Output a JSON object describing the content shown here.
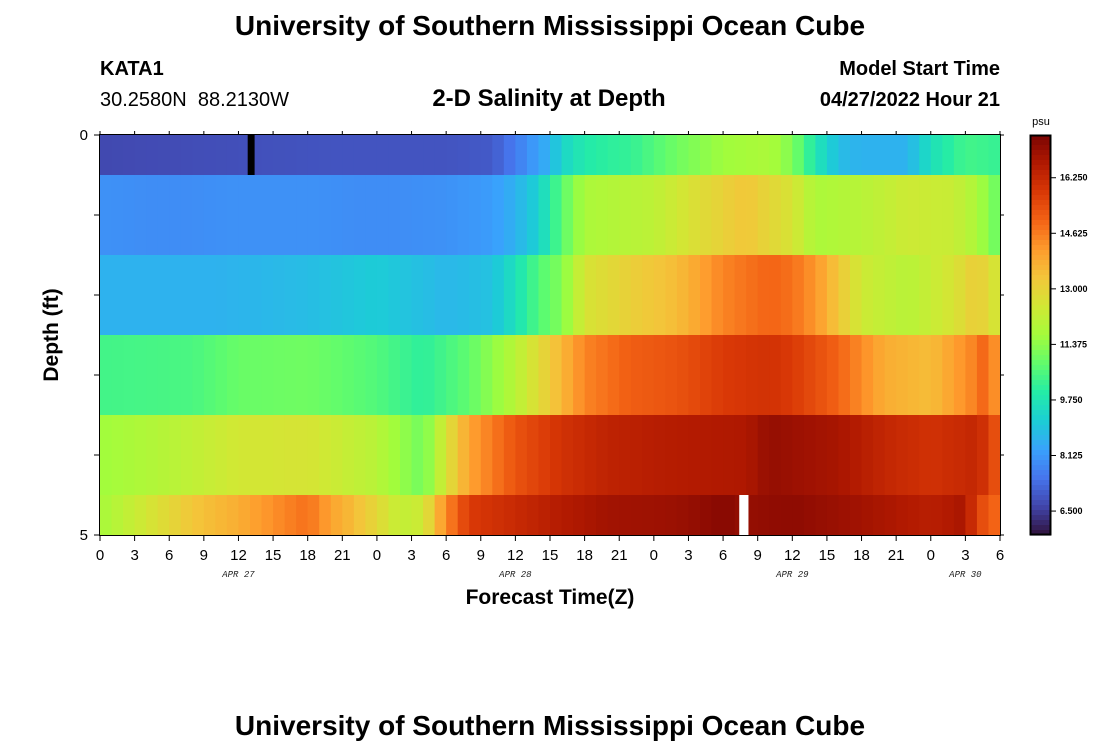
{
  "title": "University of Southern Mississippi Ocean Cube",
  "footer_title": "University of Southern Mississippi Ocean Cube",
  "station": {
    "name": "KATA1",
    "coords": "30.2580N  88.2130W"
  },
  "subtitle": "2-D Salinity at Depth",
  "model_start": {
    "label": "Model Start Time",
    "value": "04/27/2022 Hour 21"
  },
  "chart_data": {
    "type": "heatmap",
    "title": "2-D Salinity at Depth",
    "xlabel": "Forecast Time(Z)",
    "ylabel": "Depth (ft)",
    "ylim": [
      0,
      5
    ],
    "y_tick_labels": [
      "0",
      "5"
    ],
    "x_tick_labels": [
      "0",
      "3",
      "6",
      "9",
      "12",
      "15",
      "18",
      "21",
      "0",
      "3",
      "6",
      "9",
      "12",
      "15",
      "18",
      "21",
      "0",
      "3",
      "6",
      "9",
      "12",
      "15",
      "18",
      "21",
      "0",
      "3",
      "6"
    ],
    "date_labels": [
      {
        "text": "APR 27",
        "hour": 12
      },
      {
        "text": "APR 28",
        "hour": 36
      },
      {
        "text": "APR 29",
        "hour": 60
      },
      {
        "text": "APR 30",
        "hour": 75
      }
    ],
    "hours_total": 78,
    "colorbar": {
      "unit": "psu",
      "min": 5.8,
      "max": 17.5,
      "tick_labels": [
        "16.250",
        "14.625",
        "13.000",
        "11.375",
        "9.750",
        "8.125",
        "6.500"
      ],
      "tick_values": [
        16.25,
        14.625,
        13.0,
        11.375,
        9.75,
        8.125,
        6.5
      ],
      "colors": [
        "#30123b",
        "#4145ab",
        "#4675ed",
        "#39a2fc",
        "#1bcfd4",
        "#24eca6",
        "#61fc6c",
        "#a4fc3b",
        "#d1e834",
        "#f3c63a",
        "#fe9b2d",
        "#f36315",
        "#d93806",
        "#b11901",
        "#7a0403"
      ]
    },
    "depth_layers": [
      {
        "depth_range": [
          0,
          0.5
        ],
        "keys": [
          [
            0,
            6.7
          ],
          [
            10,
            6.8
          ],
          [
            20,
            6.9
          ],
          [
            30,
            6.9
          ],
          [
            34,
            7.0
          ],
          [
            36,
            7.6
          ],
          [
            38,
            8.3
          ],
          [
            39,
            8.6
          ],
          [
            40,
            9.3
          ],
          [
            42,
            9.9
          ],
          [
            44,
            10.1
          ],
          [
            46,
            10.2
          ],
          [
            50,
            11.0
          ],
          [
            54,
            11.6
          ],
          [
            58,
            11.8
          ],
          [
            60,
            11.2
          ],
          [
            62,
            9.8
          ],
          [
            64,
            8.8
          ],
          [
            66,
            8.6
          ],
          [
            70,
            8.6
          ],
          [
            72,
            9.6
          ],
          [
            75,
            10.4
          ],
          [
            77,
            10.3
          ],
          [
            78,
            10.2
          ]
        ],
        "no_data_hours": [
          [
            12.8,
            13.4
          ]
        ]
      },
      {
        "depth_range": [
          0.5,
          1.5
        ],
        "keys": [
          [
            0,
            8.0
          ],
          [
            6,
            7.9
          ],
          [
            12,
            8.0
          ],
          [
            18,
            8.0
          ],
          [
            24,
            7.9
          ],
          [
            30,
            8.0
          ],
          [
            34,
            8.2
          ],
          [
            36,
            8.6
          ],
          [
            38,
            9.2
          ],
          [
            40,
            10.7
          ],
          [
            42,
            11.8
          ],
          [
            48,
            12.1
          ],
          [
            52,
            12.8
          ],
          [
            56,
            13.3
          ],
          [
            60,
            12.6
          ],
          [
            62,
            11.8
          ],
          [
            66,
            12.0
          ],
          [
            70,
            12.4
          ],
          [
            74,
            12.3
          ],
          [
            76,
            11.8
          ],
          [
            78,
            10.8
          ]
        ]
      },
      {
        "depth_range": [
          1.5,
          2.5
        ],
        "keys": [
          [
            0,
            8.6
          ],
          [
            10,
            8.6
          ],
          [
            18,
            8.8
          ],
          [
            24,
            9.1
          ],
          [
            30,
            8.7
          ],
          [
            34,
            8.9
          ],
          [
            36,
            9.6
          ],
          [
            38,
            10.6
          ],
          [
            40,
            11.2
          ],
          [
            42,
            12.6
          ],
          [
            46,
            13.1
          ],
          [
            50,
            13.5
          ],
          [
            54,
            14.5
          ],
          [
            58,
            15.0
          ],
          [
            60,
            14.8
          ],
          [
            62,
            14.2
          ],
          [
            64,
            13.3
          ],
          [
            66,
            12.4
          ],
          [
            70,
            12.0
          ],
          [
            74,
            12.6
          ],
          [
            76,
            13.2
          ],
          [
            78,
            12.4
          ]
        ]
      },
      {
        "depth_range": [
          2.5,
          3.5
        ],
        "keys": [
          [
            0,
            10.4
          ],
          [
            8,
            10.5
          ],
          [
            12,
            10.9
          ],
          [
            18,
            11.0
          ],
          [
            24,
            10.6
          ],
          [
            28,
            10.1
          ],
          [
            32,
            10.8
          ],
          [
            36,
            12.0
          ],
          [
            40,
            13.6
          ],
          [
            42,
            14.5
          ],
          [
            46,
            15.1
          ],
          [
            50,
            15.3
          ],
          [
            54,
            15.8
          ],
          [
            58,
            16.0
          ],
          [
            60,
            15.8
          ],
          [
            64,
            15.0
          ],
          [
            68,
            13.8
          ],
          [
            72,
            13.5
          ],
          [
            76,
            14.6
          ],
          [
            77,
            15.2
          ],
          [
            78,
            13.5
          ]
        ]
      },
      {
        "depth_range": [
          3.5,
          4.5
        ],
        "keys": [
          [
            0,
            11.6
          ],
          [
            6,
            12.0
          ],
          [
            12,
            12.5
          ],
          [
            18,
            12.6
          ],
          [
            24,
            12.0
          ],
          [
            26,
            11.5
          ],
          [
            28,
            11.0
          ],
          [
            30,
            12.6
          ],
          [
            32,
            14.0
          ],
          [
            36,
            15.3
          ],
          [
            40,
            16.0
          ],
          [
            44,
            16.4
          ],
          [
            50,
            16.6
          ],
          [
            56,
            16.7
          ],
          [
            58,
            17.1
          ],
          [
            60,
            17.0
          ],
          [
            64,
            16.8
          ],
          [
            68,
            16.3
          ],
          [
            72,
            16.0
          ],
          [
            76,
            16.3
          ],
          [
            77,
            15.8
          ],
          [
            78,
            15.0
          ]
        ]
      },
      {
        "depth_range": [
          4.5,
          5.0
        ],
        "keys": [
          [
            0,
            11.7
          ],
          [
            4,
            12.5
          ],
          [
            8,
            13.3
          ],
          [
            12,
            13.8
          ],
          [
            16,
            14.5
          ],
          [
            18,
            14.8
          ],
          [
            20,
            14.0
          ],
          [
            22,
            13.5
          ],
          [
            24,
            12.9
          ],
          [
            26,
            12.2
          ],
          [
            28,
            12.4
          ],
          [
            30,
            14.4
          ],
          [
            32,
            15.8
          ],
          [
            36,
            16.2
          ],
          [
            40,
            16.6
          ],
          [
            44,
            16.9
          ],
          [
            50,
            17.0
          ],
          [
            54,
            17.3
          ],
          [
            56,
            17.1
          ],
          [
            60,
            17.2
          ],
          [
            66,
            16.9
          ],
          [
            72,
            16.5
          ],
          [
            75,
            16.8
          ],
          [
            76,
            15.6
          ],
          [
            78,
            14.8
          ]
        ],
        "no_data_hours": [
          [
            55.4,
            56.2
          ]
        ]
      }
    ]
  }
}
